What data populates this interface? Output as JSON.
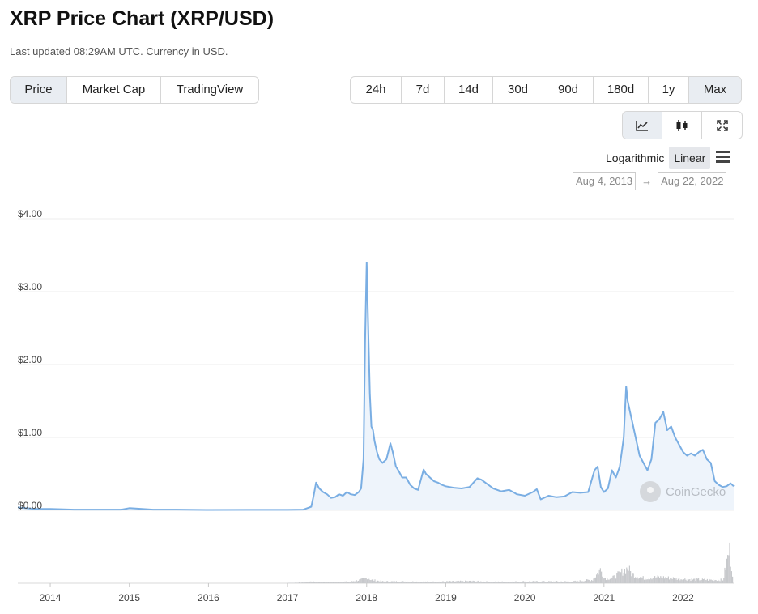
{
  "header": {
    "title": "XRP Price Chart (XRP/USD)",
    "subtitle": "Last updated 08:29AM UTC. Currency in USD."
  },
  "tabs": [
    {
      "label": "Price",
      "active": true
    },
    {
      "label": "Market Cap",
      "active": false
    },
    {
      "label": "TradingView",
      "active": false
    }
  ],
  "ranges": [
    {
      "label": "24h",
      "active": false
    },
    {
      "label": "7d",
      "active": false
    },
    {
      "label": "14d",
      "active": false
    },
    {
      "label": "30d",
      "active": false
    },
    {
      "label": "90d",
      "active": false
    },
    {
      "label": "180d",
      "active": false
    },
    {
      "label": "1y",
      "active": false
    },
    {
      "label": "Max",
      "active": true
    }
  ],
  "chart_types": [
    {
      "icon": "line-chart-icon",
      "active": true
    },
    {
      "icon": "candlestick-icon",
      "active": false
    },
    {
      "icon": "fullscreen-icon",
      "active": false
    }
  ],
  "scale": {
    "logarithmic": "Logarithmic",
    "linear": "Linear",
    "selected": "Linear"
  },
  "date_range": {
    "from": "Aug 4, 2013",
    "to": "Aug 22, 2022",
    "arrow": "→"
  },
  "watermark": "CoinGecko",
  "colors": {
    "line": "#7aaee3",
    "fill": "#eef4fb",
    "volume": "#c7c9cc",
    "grid": "#ececec"
  },
  "chart_data": {
    "type": "line",
    "title": "",
    "xlabel": "",
    "ylabel": "",
    "x_range": [
      2013.59,
      2022.64
    ],
    "ylim": [
      0,
      4
    ],
    "y_ticks": [
      0,
      1,
      2,
      3,
      4
    ],
    "y_tick_labels": [
      "$0.00",
      "$1.00",
      "$2.00",
      "$3.00",
      "$4.00"
    ],
    "x_ticks": [
      2014,
      2015,
      2016,
      2017,
      2018,
      2019,
      2020,
      2021,
      2022
    ],
    "x_tick_labels": [
      "2014",
      "2015",
      "2016",
      "2017",
      "2018",
      "2019",
      "2020",
      "2021",
      "2022"
    ],
    "series": [
      {
        "x": [
          2013.59,
          2013.8,
          2014.0,
          2014.3,
          2014.6,
          2014.9,
          2015.0,
          2015.3,
          2015.6,
          2016.0,
          2016.5,
          2017.0,
          2017.2,
          2017.25,
          2017.3,
          2017.33,
          2017.36,
          2017.4,
          2017.45,
          2017.5,
          2017.55,
          2017.6,
          2017.65,
          2017.7,
          2017.75,
          2017.8,
          2017.85,
          2017.9,
          2017.93,
          2017.96,
          2017.98,
          2018.0,
          2018.02,
          2018.04,
          2018.06,
          2018.08,
          2018.1,
          2018.13,
          2018.16,
          2018.2,
          2018.25,
          2018.3,
          2018.33,
          2018.37,
          2018.4,
          2018.45,
          2018.5,
          2018.55,
          2018.6,
          2018.65,
          2018.72,
          2018.75,
          2018.8,
          2018.85,
          2018.9,
          2018.95,
          2019.0,
          2019.1,
          2019.2,
          2019.3,
          2019.4,
          2019.45,
          2019.5,
          2019.6,
          2019.7,
          2019.8,
          2019.9,
          2020.0,
          2020.1,
          2020.15,
          2020.2,
          2020.3,
          2020.4,
          2020.5,
          2020.6,
          2020.7,
          2020.8,
          2020.88,
          2020.92,
          2020.96,
          2021.0,
          2021.05,
          2021.1,
          2021.15,
          2021.2,
          2021.25,
          2021.28,
          2021.3,
          2021.33,
          2021.36,
          2021.4,
          2021.45,
          2021.5,
          2021.55,
          2021.6,
          2021.65,
          2021.7,
          2021.75,
          2021.8,
          2021.85,
          2021.9,
          2021.95,
          2022.0,
          2022.05,
          2022.1,
          2022.15,
          2022.2,
          2022.25,
          2022.3,
          2022.35,
          2022.4,
          2022.45,
          2022.5,
          2022.55,
          2022.6,
          2022.64
        ],
        "y": [
          0.04,
          0.02,
          0.02,
          0.01,
          0.01,
          0.01,
          0.03,
          0.01,
          0.01,
          0.006,
          0.007,
          0.007,
          0.01,
          0.03,
          0.05,
          0.2,
          0.38,
          0.3,
          0.25,
          0.22,
          0.17,
          0.18,
          0.22,
          0.2,
          0.25,
          0.22,
          0.21,
          0.25,
          0.3,
          0.7,
          2.3,
          3.4,
          2.5,
          1.6,
          1.15,
          1.1,
          0.95,
          0.8,
          0.7,
          0.65,
          0.7,
          0.92,
          0.8,
          0.6,
          0.55,
          0.45,
          0.45,
          0.35,
          0.3,
          0.28,
          0.56,
          0.5,
          0.45,
          0.4,
          0.38,
          0.35,
          0.33,
          0.31,
          0.3,
          0.32,
          0.44,
          0.42,
          0.38,
          0.3,
          0.26,
          0.28,
          0.22,
          0.2,
          0.25,
          0.29,
          0.15,
          0.2,
          0.18,
          0.19,
          0.25,
          0.24,
          0.25,
          0.55,
          0.6,
          0.32,
          0.25,
          0.3,
          0.55,
          0.45,
          0.6,
          1.0,
          1.7,
          1.5,
          1.35,
          1.2,
          1.0,
          0.75,
          0.65,
          0.55,
          0.7,
          1.2,
          1.25,
          1.35,
          1.1,
          1.15,
          1.0,
          0.9,
          0.8,
          0.75,
          0.78,
          0.75,
          0.8,
          0.83,
          0.7,
          0.65,
          0.4,
          0.35,
          0.32,
          0.33,
          0.37,
          0.33
        ]
      }
    ],
    "volume": {
      "x": [
        2013.6,
        2014.0,
        2015.0,
        2016.0,
        2017.0,
        2017.3,
        2017.5,
        2017.8,
        2017.97,
        2018.0,
        2018.05,
        2018.2,
        2018.5,
        2018.8,
        2019.0,
        2019.3,
        2019.6,
        2020.0,
        2020.3,
        2020.6,
        2020.85,
        2020.9,
        2020.95,
        2021.0,
        2021.1,
        2021.3,
        2021.35,
        2021.5,
        2021.7,
        2022.0,
        2022.3,
        2022.5,
        2022.58,
        2022.6,
        2022.62
      ],
      "share": [
        0.0,
        0.0,
        0.0,
        0.0,
        0.0,
        0.04,
        0.03,
        0.05,
        0.12,
        0.18,
        0.1,
        0.05,
        0.05,
        0.04,
        0.05,
        0.06,
        0.04,
        0.05,
        0.05,
        0.05,
        0.1,
        0.25,
        0.4,
        0.15,
        0.15,
        0.45,
        0.25,
        0.15,
        0.18,
        0.12,
        0.1,
        0.1,
        1.0,
        0.6,
        0.3
      ]
    }
  }
}
